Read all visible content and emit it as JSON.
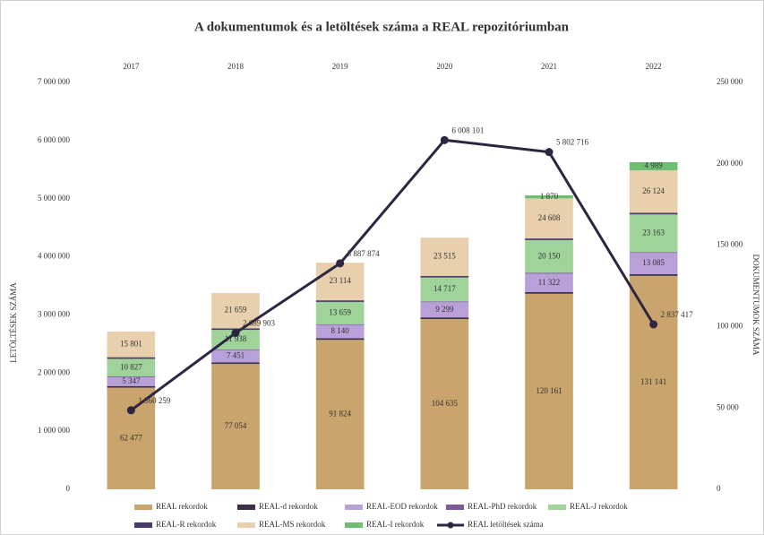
{
  "chart_data": {
    "type": "bar",
    "title": "A dokumentumok és a letöltések száma a REAL repozitóriumban",
    "y_label": "LETÖLTÉSEK SZÁMA",
    "y2_label": "DOKUMENTUMOK SZÁMA",
    "categories": [
      "2017",
      "2018",
      "2019",
      "2020",
      "2021",
      "2022"
    ],
    "ylim": [
      0,
      7000000
    ],
    "yticks": [
      0,
      {
        "value": 1000000,
        "label": "1 000 000"
      },
      {
        "value": 2000000,
        "label": "2 000 000"
      },
      {
        "value": 3000000,
        "label": "3 000 000"
      },
      {
        "value": 4000000,
        "label": "4 000 000"
      },
      {
        "value": 5000000,
        "label": "5 000 000"
      },
      {
        "value": 6000000,
        "label": "6 000 000"
      },
      {
        "value": 7000000,
        "label": "7 000 000"
      }
    ],
    "y2lim": [
      0,
      250000
    ],
    "y2ticks": [
      0,
      {
        "value": 50000,
        "label": "50 000"
      },
      {
        "value": 100000,
        "label": "100 000"
      },
      {
        "value": 150000,
        "label": "150 000"
      },
      {
        "value": 200000,
        "label": "200 000"
      },
      {
        "value": 250000,
        "label": "250 000"
      }
    ],
    "series": [
      {
        "name": "REAL rekordok",
        "type": "bar",
        "axis": "y2",
        "color": "#c9a46c",
        "values": [
          62477,
          77054,
          91824,
          104635,
          120161,
          131141
        ],
        "value_labels": [
          "62 477",
          "77 054",
          "91 824",
          "104 635",
          "120 161",
          "131 141"
        ]
      },
      {
        "name": "REAL-d rekordok",
        "type": "bar",
        "axis": "y2",
        "color": "#3b2f4a",
        "values": [
          1000,
          1000,
          1000,
          1000,
          1000,
          1000
        ]
      },
      {
        "name": "REAL-EOD rekordok",
        "type": "bar",
        "axis": "y2",
        "color": "#b9a0d8",
        "values": [
          5347,
          7451,
          8140,
          9299,
          11322,
          13085
        ],
        "value_labels": [
          "5 347",
          "7 451",
          "8 140",
          "9 299",
          "11 322",
          "13 085"
        ]
      },
      {
        "name": "REAL-PhD rekordok",
        "type": "bar",
        "axis": "y2",
        "color": "#7a5a9a",
        "values": [
          500,
          500,
          500,
          500,
          500,
          500
        ]
      },
      {
        "name": "REAL-J rekordok",
        "type": "bar",
        "axis": "y2",
        "color": "#9fd39a",
        "values": [
          10827,
          11938,
          13659,
          14717,
          20150,
          23163
        ],
        "value_labels": [
          "10 827",
          "11 938",
          "13 659",
          "14 717",
          "20 150",
          "23 163"
        ]
      },
      {
        "name": "REAL-R rekordok",
        "type": "bar",
        "axis": "y2",
        "color": "#4a3a6a",
        "values": [
          1000,
          1000,
          1000,
          1000,
          1000,
          1000
        ]
      },
      {
        "name": "REAL-MS rekordok",
        "type": "bar",
        "axis": "y2",
        "color": "#e8cfae",
        "values": [
          15801,
          21659,
          23114,
          23515,
          24608,
          26124
        ],
        "value_labels": [
          "15 801",
          "21 659",
          "23 114",
          "23 515",
          "24 608",
          "26 124"
        ]
      },
      {
        "name": "REAL-I rekordok",
        "type": "bar",
        "axis": "y2",
        "color": "#6fbf73",
        "values": [
          null,
          null,
          null,
          null,
          1870,
          4989
        ],
        "value_labels": [
          null,
          null,
          null,
          null,
          "1 870",
          "4 989"
        ]
      },
      {
        "name": "REAL letöltések száma",
        "type": "line",
        "axis": "y",
        "color": "#2e2640",
        "values": [
          1360259,
          2689903,
          3887874,
          6008101,
          5802716,
          2837417
        ],
        "value_labels": [
          "1 360 259",
          "2 689 903",
          "3 887 874",
          "6 008 101",
          "5 802 716",
          "2 837 417"
        ]
      }
    ]
  }
}
